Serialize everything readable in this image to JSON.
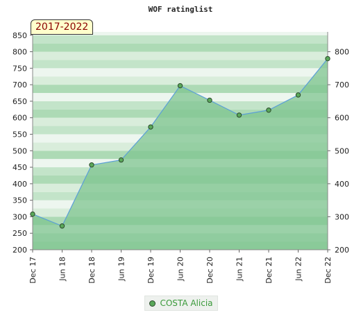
{
  "chart_data": {
    "type": "area",
    "title": "WOF ratinglist",
    "period": "2017-2022",
    "x": [
      "Dec 17",
      "Jun 18",
      "Dec 18",
      "Jun 19",
      "Dec 19",
      "Jun 20",
      "Dec 20",
      "Jun 21",
      "Dec 21",
      "Jun 22",
      "Dec 22"
    ],
    "series": [
      {
        "name": "COSTA Alicia",
        "values": [
          308,
          272,
          457,
          472,
          572,
          697,
          653,
          608,
          623,
          669,
          779
        ]
      }
    ],
    "ylim": [
      200,
      860
    ],
    "left_ticks": [
      200,
      250,
      300,
      350,
      400,
      450,
      500,
      550,
      600,
      650,
      700,
      750,
      800,
      850
    ],
    "right_ticks": [
      200,
      300,
      400,
      500,
      600,
      700,
      800
    ],
    "grid": true,
    "legend_position": "bottom",
    "colors": {
      "fill": "#7fc490",
      "line": "#5a9ed8",
      "marker": "#5aa85a",
      "marker_border": "#2c4a2c",
      "legend_text": "#3a9a3a"
    }
  }
}
